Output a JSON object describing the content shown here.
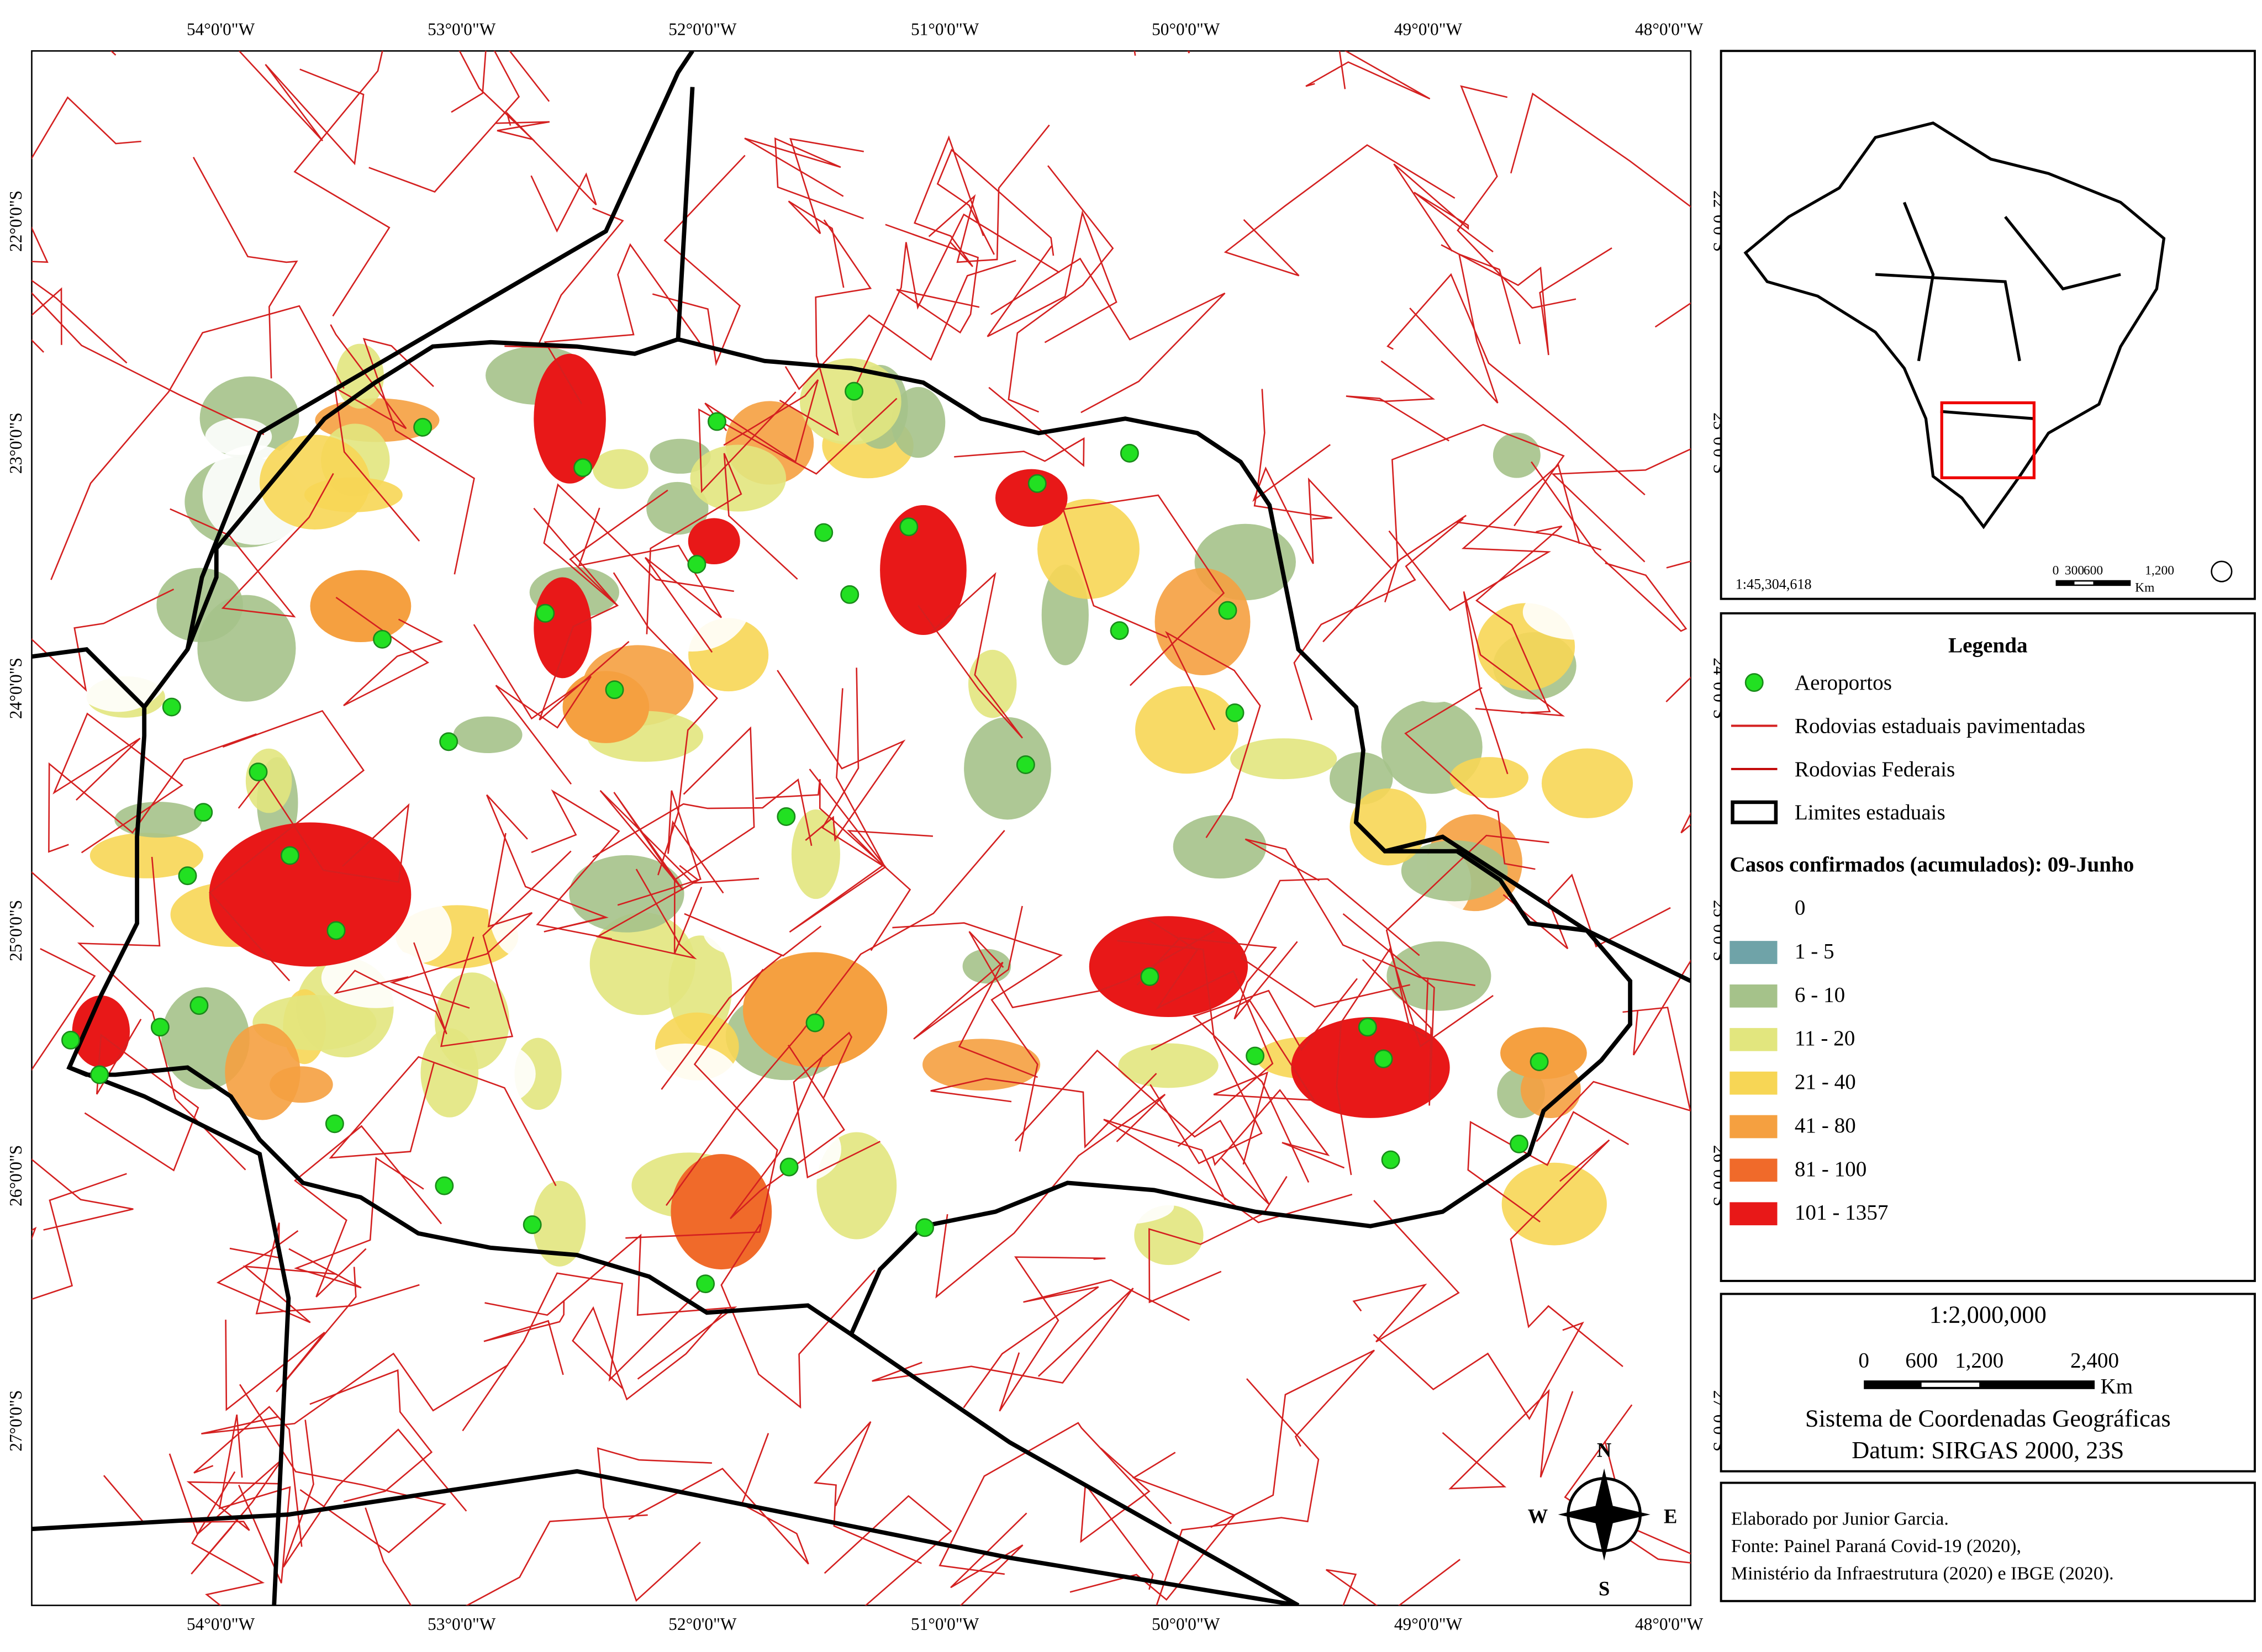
{
  "map": {
    "longitude_labels": [
      "54°0'0\"W",
      "53°0'0\"W",
      "52°0'0\"W",
      "51°0'0\"W",
      "50°0'0\"W",
      "49°0'0\"W",
      "48°0'0\"W"
    ],
    "latitude_labels": [
      "22°0'0\"S",
      "23°0'0\"S",
      "24°0'0\"S",
      "25°0'0\"S",
      "26°0'0\"S",
      "27°0'0\"S"
    ],
    "legend": {
      "title": "Legenda",
      "items": [
        {
          "label": "Aeroportos",
          "color": "#22e022"
        },
        {
          "label": "Rodovias estaduais pavimentadas",
          "color": "#d42020"
        },
        {
          "label": "Rodovias Federais",
          "color": "#c00000"
        },
        {
          "label": "Limites estaduais",
          "color": "#000000"
        }
      ],
      "classes_title": "Casos confirmados (acumulados): 09-Junho",
      "classes": [
        {
          "label": "0",
          "color": "#ffffff"
        },
        {
          "label": "1 - 5",
          "color": "#6fa3a8"
        },
        {
          "label": "6 - 10",
          "color": "#a5c28a"
        },
        {
          "label": "11 - 20",
          "color": "#e2e67e"
        },
        {
          "label": "21 - 40",
          "color": "#f7d655"
        },
        {
          "label": "41 - 80",
          "color": "#f5a040"
        },
        {
          "label": "81 - 100",
          "color": "#f06a2a"
        },
        {
          "label": "101 - 1357",
          "color": "#e81818"
        }
      ]
    },
    "inset": {
      "scale": "1:45,304,618",
      "scale_bar_labels": [
        "0",
        "300",
        "600",
        "1,200"
      ],
      "unit": "Km"
    },
    "scale": {
      "ratio": "1:2,000,000",
      "bar_labels": [
        "0",
        "600",
        "1,200",
        "2,400"
      ],
      "unit": "Km"
    },
    "coordinate_system": [
      "Sistema de Coordenadas Geográficas",
      "Datum: SIRGAS 2000, 23S"
    ],
    "credits": [
      "Elaborado por Junior Garcia.",
      "Fonte: Painel Paraná Covid-19 (2020),",
      "Ministério da Infraestrutura (2020) e IBGE (2020)."
    ],
    "compass": [
      "N",
      "E",
      "S",
      "W"
    ]
  }
}
